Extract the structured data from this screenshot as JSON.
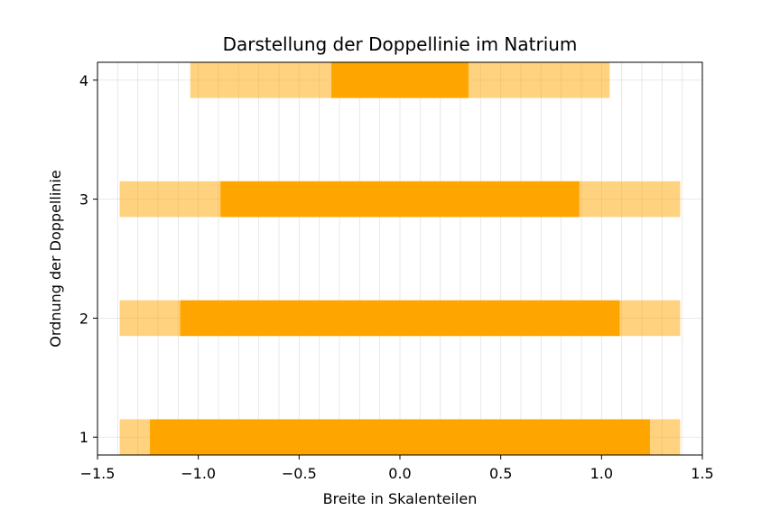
{
  "chart_data": {
    "type": "bar",
    "orientation": "horizontal",
    "title": "Darstellung der Doppellinie im Natrium",
    "xlabel": "Breite in Skalenteilen",
    "ylabel": "Ordnung der Doppellinie",
    "xlim": [
      -1.5,
      1.5
    ],
    "ylim": [
      0.85,
      4.15
    ],
    "xticks": [
      -1.5,
      -1.0,
      -0.5,
      0.0,
      0.5,
      1.0,
      1.5
    ],
    "xtick_labels": [
      "−1.5",
      "−1.0",
      "−0.5",
      "0.0",
      "0.5",
      "1.0",
      "1.5"
    ],
    "yticks": [
      1,
      2,
      3,
      4
    ],
    "ytick_labels": [
      "1",
      "2",
      "3",
      "4"
    ],
    "minor_x_grid_step": 0.1,
    "grid": true,
    "bar_height": 0.3,
    "series": [
      {
        "role": "outer",
        "color": "#FFA500",
        "opacity": 0.5,
        "bars": [
          {
            "y": 1,
            "x_start": -1.39,
            "x_end": 1.39
          },
          {
            "y": 2,
            "x_start": -1.39,
            "x_end": 1.39
          },
          {
            "y": 3,
            "x_start": -1.39,
            "x_end": 1.39
          },
          {
            "y": 4,
            "x_start": -1.04,
            "x_end": 1.04
          }
        ]
      },
      {
        "role": "inner",
        "color": "#FFA500",
        "opacity": 1.0,
        "bars": [
          {
            "y": 1,
            "x_start": -1.24,
            "x_end": 1.24
          },
          {
            "y": 2,
            "x_start": -1.09,
            "x_end": 1.09
          },
          {
            "y": 3,
            "x_start": -0.89,
            "x_end": 0.89
          },
          {
            "y": 4,
            "x_start": -0.34,
            "x_end": 0.34
          }
        ]
      }
    ]
  }
}
